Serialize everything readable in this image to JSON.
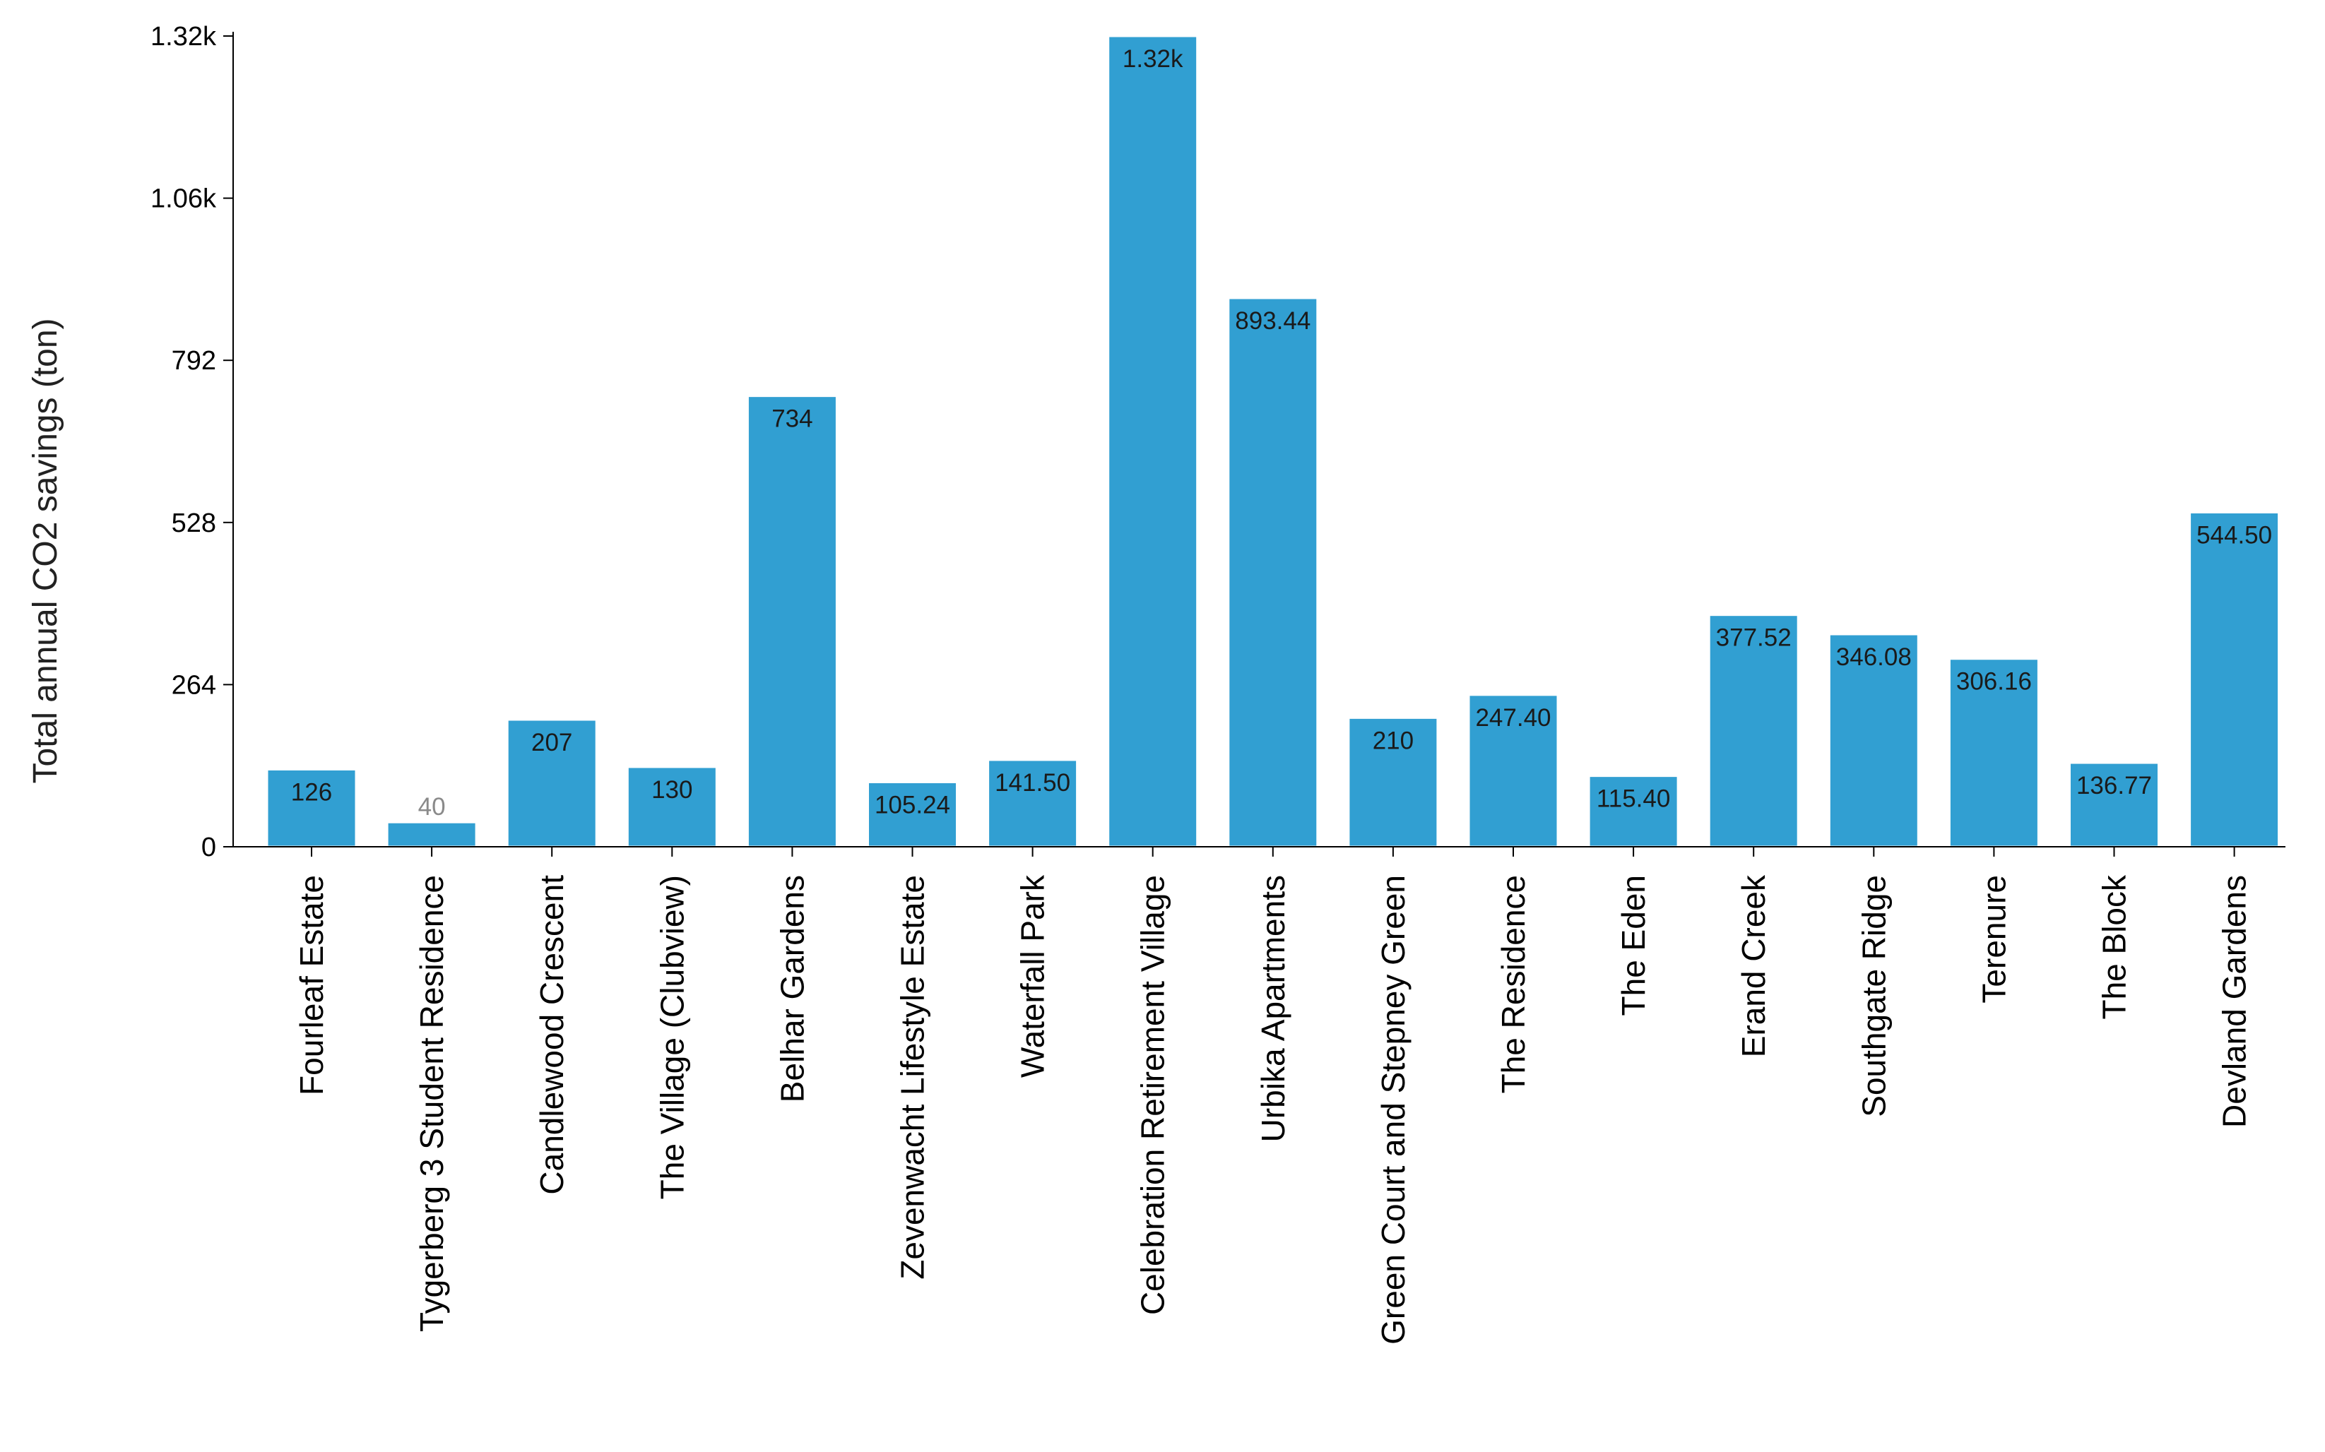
{
  "chart_data": {
    "type": "bar",
    "title": "",
    "xlabel": "",
    "ylabel": "Total annual CO2 savings (ton)",
    "ylim": [
      0,
      1320
    ],
    "yticks": [
      0,
      264,
      528,
      792,
      1056,
      1320
    ],
    "ytick_labels": [
      "0",
      "264",
      "528",
      "792",
      "1.06k",
      "1.32k"
    ],
    "grid": false,
    "legend": "none",
    "bar_color": "#319FD2",
    "categories": [
      "Fourleaf Estate",
      "Tygerberg 3 Student Residence",
      "Candlewood Crescent",
      "The Village (Clubview)",
      "Belhar Gardens",
      "Zevenwacht Lifestyle Estate",
      "Waterfall Park",
      "Celebration Retirement Village",
      "Urbika Apartments",
      "Green Court and Stepney Green",
      "The Residence",
      "The Eden",
      "Erand Creek",
      "Southgate Ridge",
      "Terenure",
      "The Block",
      "Devland Gardens"
    ],
    "values": [
      126,
      40,
      207,
      130,
      734,
      105.24,
      141.5,
      1320,
      893.44,
      210,
      247.4,
      115.4,
      377.52,
      346.08,
      306.16,
      136.77,
      544.5
    ],
    "data_labels": [
      "126",
      "40",
      "207",
      "130",
      "734",
      "105.24",
      "141.50",
      "1.32k",
      "893.44",
      "210",
      "247.40",
      "115.40",
      "377.52",
      "346.08",
      "306.16",
      "136.77",
      "544.50"
    ]
  }
}
